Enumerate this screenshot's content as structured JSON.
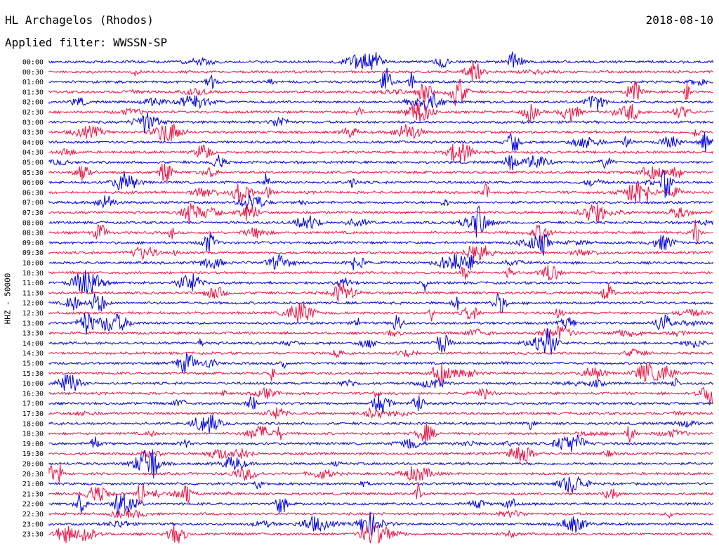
{
  "header": {
    "station": "HL Archagelos (Rhodos)",
    "filter": "Applied filter: WWSSN-SP",
    "date": "2018-08-10"
  },
  "chart_data": {
    "type": "line",
    "title": "HL Archagelos (Rhodos)",
    "subtitle": "Applied filter: WWSSN-SP",
    "date": "2018-08-10",
    "ylabel": "HHZ - 50000",
    "row_labels": [
      "00:00",
      "00:30",
      "01:00",
      "01:30",
      "02:00",
      "02:30",
      "03:00",
      "03:30",
      "04:00",
      "04:30",
      "05:00",
      "05:30",
      "06:00",
      "06:30",
      "07:00",
      "07:30",
      "08:00",
      "08:30",
      "09:00",
      "09:30",
      "10:00",
      "10:30",
      "11:00",
      "11:30",
      "12:00",
      "12:30",
      "13:00",
      "13:30",
      "14:00",
      "14:30",
      "15:00",
      "15:30",
      "16:00",
      "16:30",
      "17:00",
      "17:30",
      "18:00",
      "18:30",
      "19:00",
      "19:30",
      "20:00",
      "20:30",
      "21:00",
      "21:30",
      "22:00",
      "22:30",
      "23:00",
      "23:30"
    ],
    "series_colors": [
      "#0000dd",
      "#ee1144"
    ],
    "grid": false
  }
}
